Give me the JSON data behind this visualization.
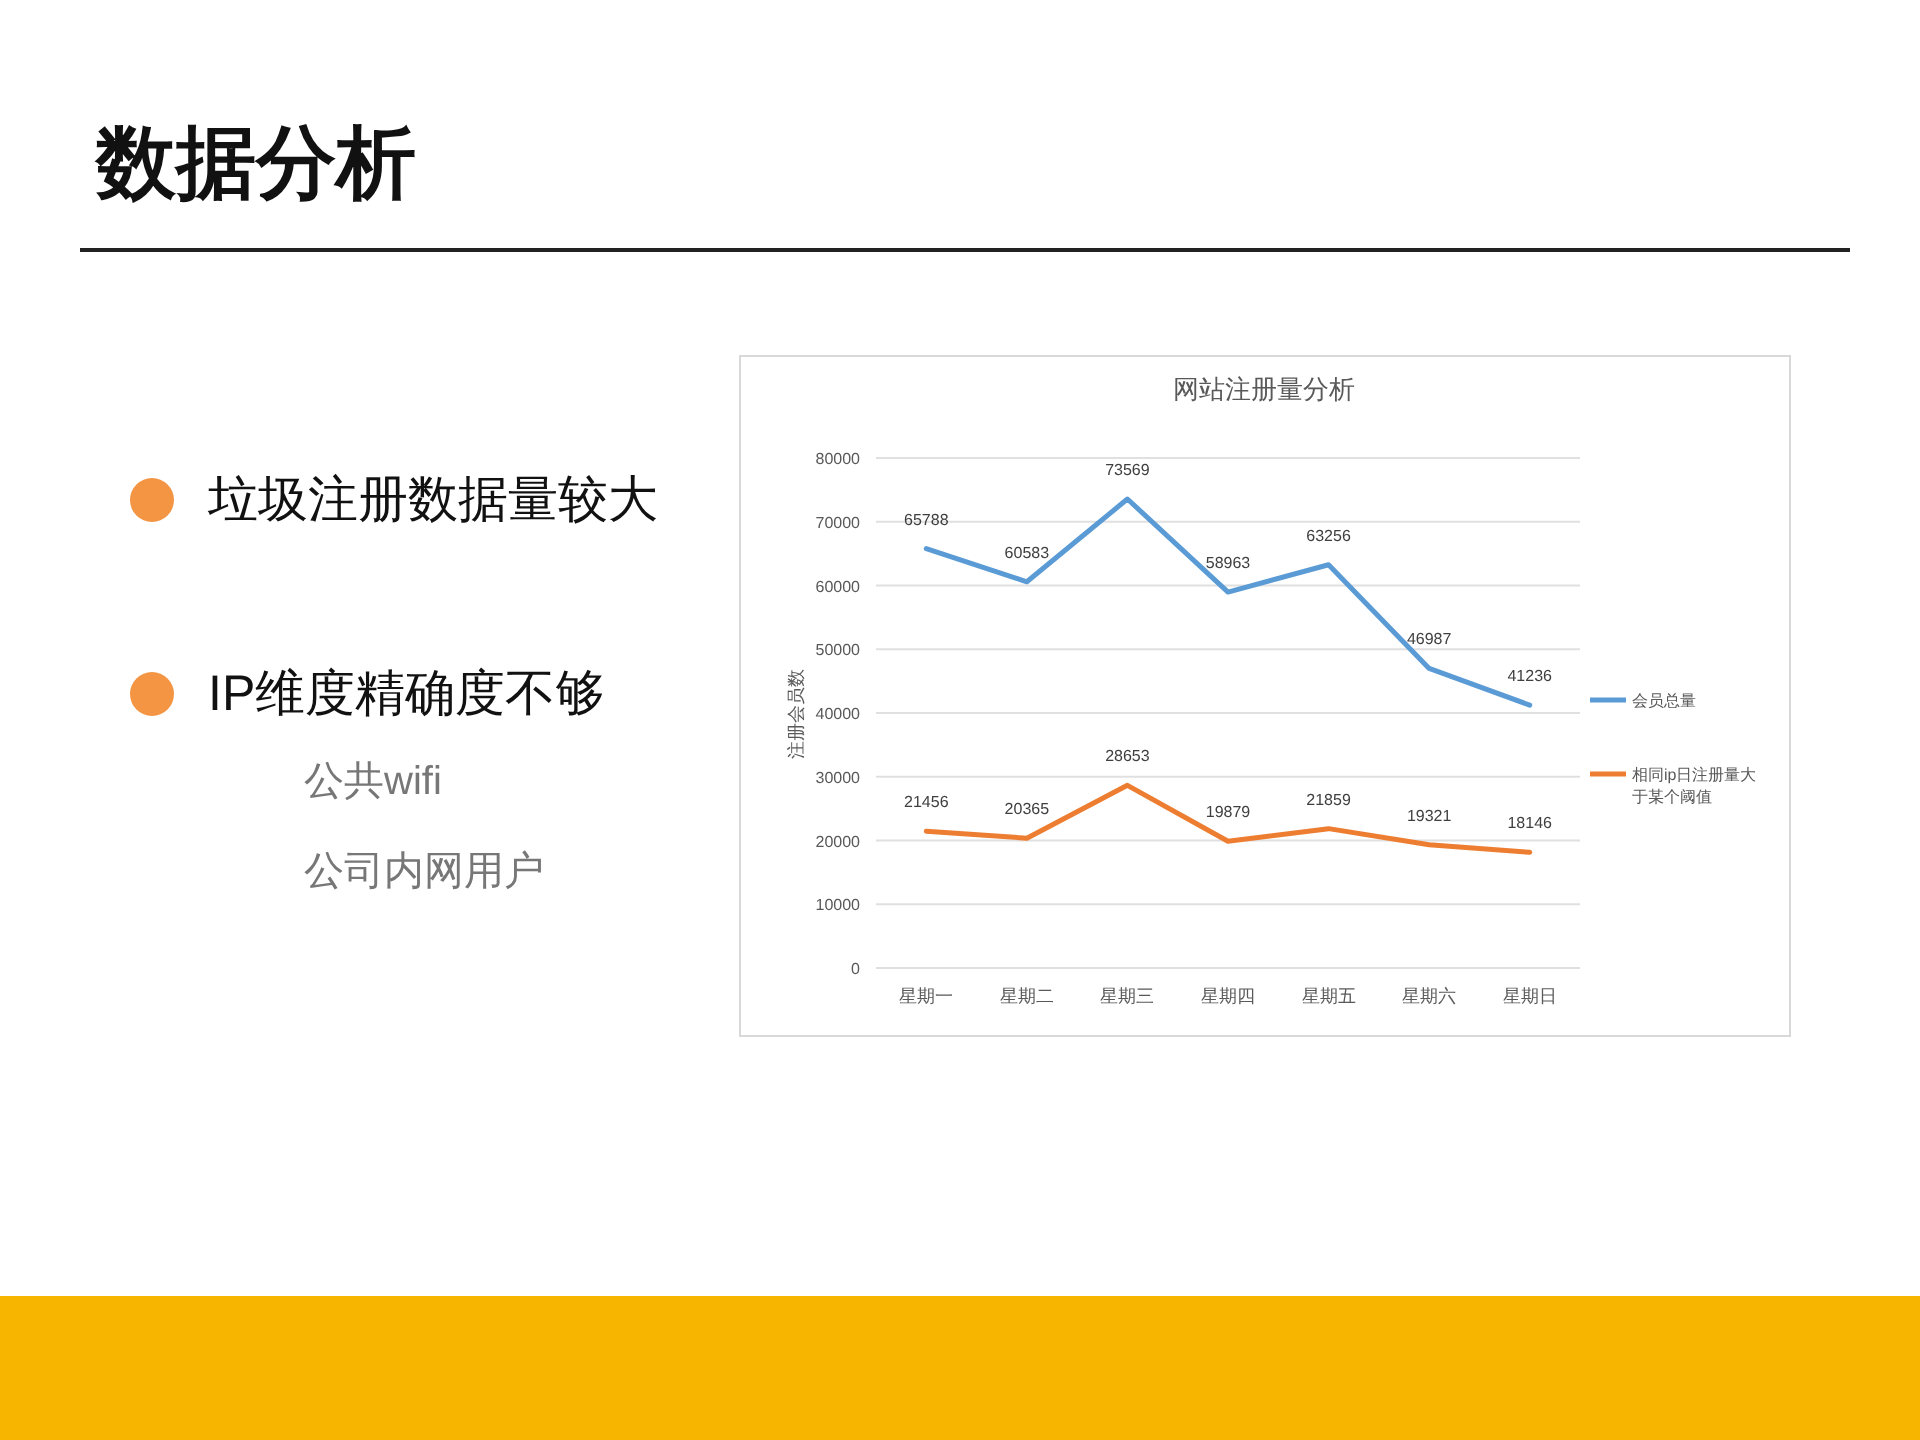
{
  "chart_data": {
    "type": "line",
    "title": "数据分析",
    "subtitle": "网站注册量分析",
    "ylabel": "注册会员数",
    "annotations": [
      "垃圾注册数据量较大",
      "IP维度精确度不够",
      "公共wifi",
      "公司内网用户"
    ],
    "categories": [
      "星期一",
      "星期二",
      "星期三",
      "星期四",
      "星期五",
      "星期六",
      "星期日"
    ],
    "series": [
      {
        "name": "会员总量",
        "color": "#5b9bd5",
        "values": [
          65788,
          60583,
          73569,
          58963,
          63256,
          46987,
          41236
        ]
      },
      {
        "name": "相同ip日注册量大于某个阈值",
        "color": "#ed7d31",
        "values": [
          21456,
          20365,
          28653,
          19879,
          21859,
          19321,
          18146
        ]
      }
    ],
    "ylim": [
      0,
      80000
    ],
    "yticks": [
      0,
      10000,
      20000,
      30000,
      40000,
      50000,
      60000,
      70000,
      80000
    ],
    "grid": "y",
    "legend": "right",
    "data_labels": true
  }
}
